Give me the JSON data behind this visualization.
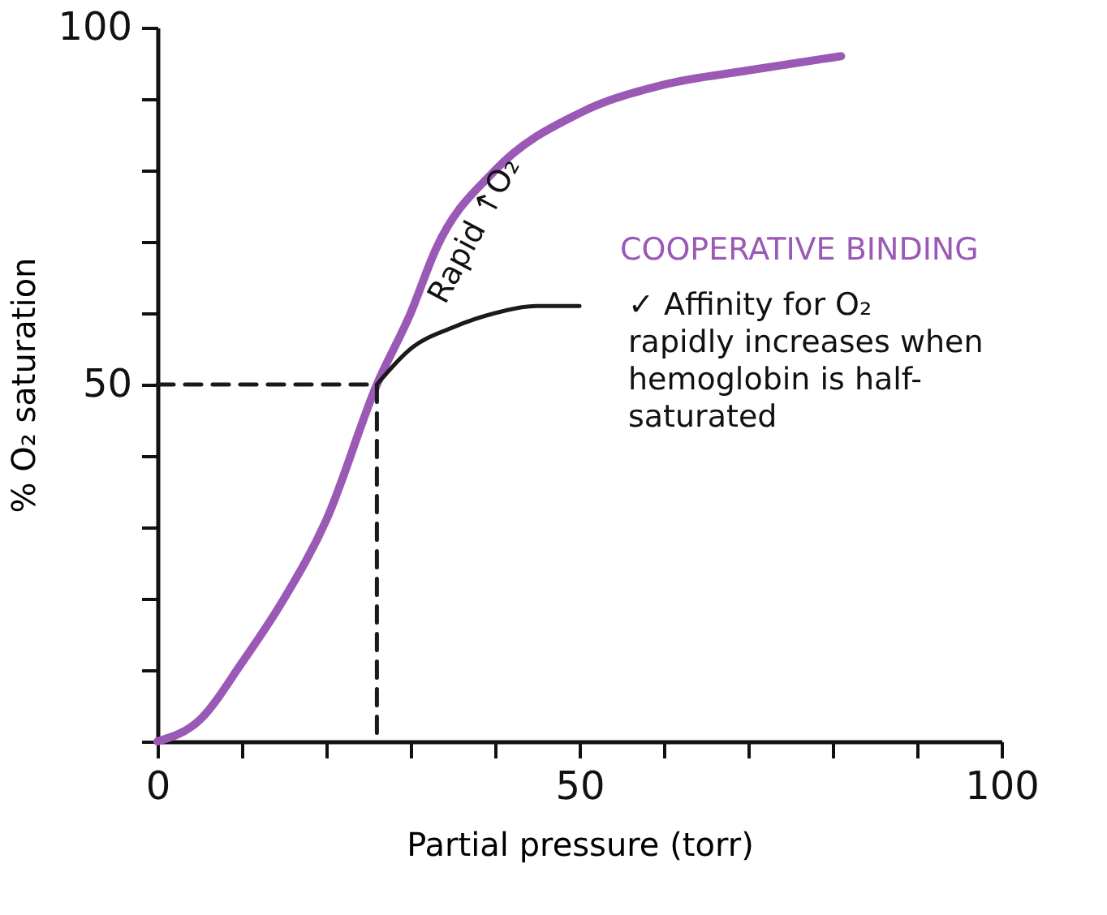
{
  "chart_data": {
    "type": "line",
    "xlabel": "Partial pressure (torr)",
    "ylabel": "% O₂ saturation",
    "xlim": [
      0,
      100
    ],
    "ylim": [
      0,
      100
    ],
    "xticks": [
      0,
      {
        "value": 10,
        "label": null
      },
      {
        "value": 20,
        "label": null
      },
      {
        "value": 30,
        "label": null
      },
      {
        "value": 40,
        "label": null
      },
      50,
      {
        "value": 60,
        "label": null
      },
      {
        "value": 70,
        "label": null
      },
      {
        "value": 80,
        "label": null
      },
      {
        "value": 90,
        "label": null
      },
      100
    ],
    "yticks": [
      {
        "value": 0,
        "label": null
      },
      {
        "value": 10,
        "label": null
      },
      {
        "value": 20,
        "label": null
      },
      {
        "value": 30,
        "label": null
      },
      {
        "value": 40,
        "label": null
      },
      50,
      {
        "value": 60,
        "label": null
      },
      {
        "value": 70,
        "label": null
      },
      {
        "value": 80,
        "label": null
      },
      {
        "value": 90,
        "label": null
      },
      100
    ],
    "grid": false,
    "marker": "none",
    "series": [
      {
        "color": "#9b59b6",
        "line_style": "solid",
        "x": [
          0,
          5,
          10,
          15,
          20,
          26,
          30,
          33,
          40,
          50,
          60,
          70,
          81
        ],
        "values": [
          0,
          3,
          11,
          20,
          31,
          50,
          60,
          69,
          80,
          88,
          92,
          94,
          96
        ]
      },
      {
        "color": "#1a1a1a",
        "line_style": "solid",
        "x": [
          26,
          30,
          35,
          40,
          45,
          50
        ],
        "values": [
          50,
          55,
          58,
          60,
          61,
          61
        ]
      },
      {
        "color": "#1a1a1a",
        "line_style": "dashed",
        "x": [
          0,
          26,
          26
        ],
        "values": [
          50,
          50,
          0
        ]
      }
    ],
    "annotations": [
      "Rapid ↑O₂",
      "COOPERATIVE BINDING",
      "✓ Affinity for O₂ rapidly increases when hemoglobin is half-saturated"
    ]
  }
}
